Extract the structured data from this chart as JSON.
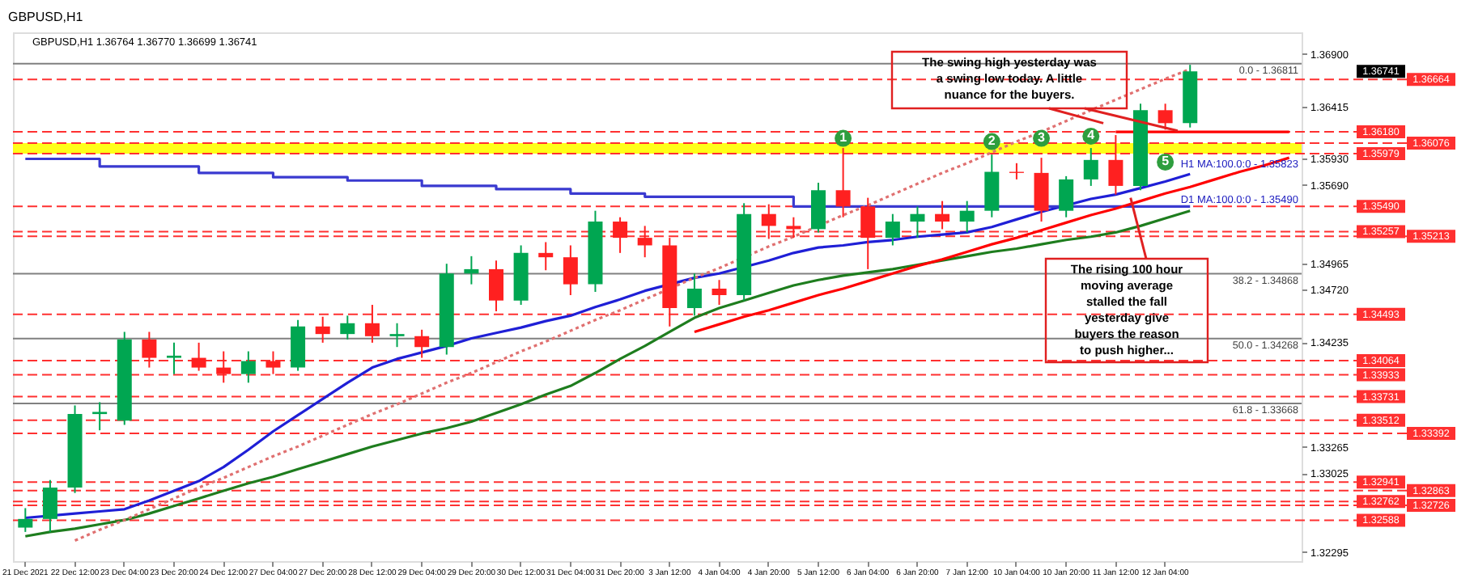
{
  "chart_data": {
    "type": "candlestick",
    "title": "GBPUSD,H1",
    "subtitle": "GBPUSD,H1  1.36764 1.36770 1.36699 1.36741",
    "categories": [
      "21 Dec 2021",
      null,
      "22 Dec 12:00",
      null,
      "23 Dec 04:00",
      null,
      "23 Dec 20:00",
      null,
      "24 Dec 12:00",
      null,
      "27 Dec 04:00",
      null,
      "27 Dec 20:00",
      null,
      "28 Dec 12:00",
      null,
      "29 Dec 04:00",
      null,
      "29 Dec 20:00",
      null,
      "30 Dec 12:00",
      null,
      "31 Dec 04:00",
      null,
      "31 Dec 20:00",
      null,
      "3 Jan 12:00",
      null,
      "4 Jan 04:00",
      null,
      "4 Jan 20:00",
      null,
      "5 Jan 12:00",
      null,
      "6 Jan 04:00",
      null,
      "6 Jan 20:00",
      null,
      "7 Jan 12:00",
      null,
      "10 Jan 04:00",
      null,
      "10 Jan 20:00",
      null,
      "11 Jan 12:00",
      null,
      "12 Jan 04:00",
      null,
      null,
      null,
      null,
      null
    ],
    "ohlc": [
      [
        1.3252,
        1.327,
        1.3248,
        1.326
      ],
      [
        1.326,
        1.3296,
        1.3248,
        1.3289
      ],
      [
        1.3289,
        1.3365,
        1.3284,
        1.3357
      ],
      [
        1.3357,
        1.3368,
        1.3342,
        1.3359
      ],
      [
        1.3351,
        1.3433,
        1.3347,
        1.3426
      ],
      [
        1.3426,
        1.3433,
        1.34,
        1.3409
      ],
      [
        1.3409,
        1.3423,
        1.3394,
        1.3411
      ],
      [
        1.3409,
        1.3423,
        1.3397,
        1.34
      ],
      [
        1.34,
        1.3415,
        1.3386,
        1.3394
      ],
      [
        1.3394,
        1.3415,
        1.3386,
        1.3406
      ],
      [
        1.3406,
        1.3415,
        1.3394,
        1.34
      ],
      [
        1.34,
        1.3444,
        1.3397,
        1.3438
      ],
      [
        1.3438,
        1.3447,
        1.3423,
        1.3431
      ],
      [
        1.3431,
        1.3448,
        1.3426,
        1.3441
      ],
      [
        1.3441,
        1.3458,
        1.3423,
        1.3429
      ],
      [
        1.3429,
        1.3441,
        1.3419,
        1.3431
      ],
      [
        1.3429,
        1.3435,
        1.3409,
        1.3419
      ],
      [
        1.3419,
        1.3496,
        1.3412,
        1.3487
      ],
      [
        1.3487,
        1.3503,
        1.3477,
        1.3491
      ],
      [
        1.3491,
        1.3499,
        1.3452,
        1.3462
      ],
      [
        1.3462,
        1.3513,
        1.3458,
        1.3506
      ],
      [
        1.3506,
        1.3516,
        1.349,
        1.3502
      ],
      [
        1.3502,
        1.3513,
        1.3467,
        1.3477
      ],
      [
        1.3477,
        1.3545,
        1.347,
        1.3535
      ],
      [
        1.3535,
        1.3539,
        1.3506,
        1.352
      ],
      [
        1.352,
        1.3531,
        1.3502,
        1.3513
      ],
      [
        1.3513,
        1.352,
        1.3438,
        1.3455
      ],
      [
        1.3455,
        1.3487,
        1.3448,
        1.3473
      ],
      [
        1.3473,
        1.3481,
        1.3458,
        1.3467
      ],
      [
        1.3467,
        1.3552,
        1.3462,
        1.3542
      ],
      [
        1.3542,
        1.3551,
        1.3519,
        1.3531
      ],
      [
        1.3531,
        1.3539,
        1.352,
        1.3528
      ],
      [
        1.3528,
        1.3571,
        1.3525,
        1.3564
      ],
      [
        1.3564,
        1.3603,
        1.3539,
        1.3549
      ],
      [
        1.3549,
        1.3557,
        1.3491,
        1.352
      ],
      [
        1.352,
        1.3542,
        1.3513,
        1.3535
      ],
      [
        1.3535,
        1.3549,
        1.352,
        1.3542
      ],
      [
        1.3542,
        1.3554,
        1.3528,
        1.3535
      ],
      [
        1.3535,
        1.3554,
        1.3525,
        1.3545
      ],
      [
        1.3545,
        1.3597,
        1.3539,
        1.3581
      ],
      [
        1.3581,
        1.3589,
        1.3574,
        1.358
      ],
      [
        1.358,
        1.3594,
        1.3535,
        1.3545
      ],
      [
        1.3545,
        1.3577,
        1.3539,
        1.3574
      ],
      [
        1.3574,
        1.3603,
        1.3568,
        1.3592
      ],
      [
        1.3592,
        1.3615,
        1.356,
        1.3568
      ],
      [
        1.3568,
        1.3644,
        1.3564,
        1.3638
      ],
      [
        1.3638,
        1.3644,
        1.362,
        1.3626
      ],
      [
        1.3626,
        1.368,
        1.3622,
        1.3674
      ],
      null,
      null,
      null,
      null
    ],
    "series": [
      {
        "type": "line",
        "color": "#1f1fd6",
        "values": [
          1.3261,
          null,
          1.3265,
          1.3267,
          1.3269,
          1.3277,
          1.3286,
          1.3295,
          1.3308,
          1.3324,
          1.3341,
          1.3356,
          1.3371,
          1.3386,
          1.34,
          1.3408,
          1.3414,
          1.342,
          1.3427,
          1.3432,
          1.3437,
          1.3443,
          1.3448,
          1.3456,
          1.3463,
          1.3471,
          null,
          1.3483,
          1.3487,
          null,
          1.3499,
          1.3506,
          1.3511,
          1.3513,
          1.3516,
          1.3518,
          1.3521,
          1.3523,
          1.3525,
          1.353,
          1.3537,
          1.3544,
          null,
          1.3556,
          1.356,
          1.3566,
          1.3572,
          1.3579,
          null,
          null,
          null,
          null
        ]
      },
      {
        "type": "line",
        "color": "#1e7d1e",
        "values": [
          1.3244,
          1.3248,
          1.3251,
          1.3255,
          1.3259,
          1.3265,
          1.3272,
          1.3279,
          1.3286,
          1.3293,
          1.3299,
          1.3306,
          1.3313,
          1.332,
          1.3327,
          1.3333,
          1.3339,
          1.3344,
          1.335,
          1.3358,
          1.3366,
          1.3375,
          1.3383,
          1.3395,
          1.3408,
          1.342,
          1.3433,
          1.3446,
          1.3455,
          1.3462,
          1.3469,
          1.3476,
          1.3481,
          1.3485,
          1.3488,
          1.3491,
          1.3495,
          1.3499,
          1.3503,
          1.3507,
          1.351,
          1.3514,
          1.3518,
          1.3521,
          1.3525,
          1.3531,
          1.3538,
          1.3545,
          null,
          null,
          null,
          null
        ]
      },
      {
        "type": "step",
        "color": "#3a3ad0",
        "values": [
          1.3593,
          1.3593,
          1.3593,
          1.3586,
          1.3586,
          1.3586,
          1.3586,
          1.358,
          1.358,
          1.358,
          1.3576,
          1.3576,
          1.3576,
          1.3573,
          1.3573,
          1.3573,
          1.3568,
          1.3568,
          1.3568,
          1.3565,
          1.3565,
          1.3565,
          1.3561,
          1.3561,
          1.3561,
          1.3558,
          1.3558,
          1.3558,
          1.3558,
          1.3558,
          1.3558,
          1.3549,
          1.3549,
          1.3549,
          1.3549,
          1.3549,
          1.3549,
          1.3549,
          1.3549,
          null,
          1.3549,
          1.3549,
          null,
          1.3549,
          1.3549,
          1.3549,
          1.3549,
          1.3549,
          null,
          null,
          null,
          null
        ]
      },
      {
        "type": "line",
        "color": "#ff0000",
        "values": [
          null,
          null,
          null,
          null,
          null,
          null,
          null,
          null,
          null,
          null,
          null,
          null,
          null,
          null,
          null,
          null,
          null,
          null,
          null,
          null,
          null,
          null,
          null,
          null,
          null,
          null,
          null,
          1.3433,
          1.344,
          1.3447,
          1.3453,
          1.346,
          1.3467,
          1.3473,
          1.348,
          1.3487,
          1.3494,
          1.35,
          1.3507,
          1.3514,
          1.352,
          1.3527,
          1.3534,
          1.3541,
          1.3547,
          1.3554,
          1.3561,
          1.3567,
          1.3574,
          1.3581,
          1.3587,
          1.3594
        ]
      },
      {
        "type": "line",
        "color": "#ff0000",
        "values": [
          null,
          null,
          null,
          null,
          null,
          null,
          null,
          null,
          null,
          null,
          null,
          null,
          null,
          null,
          null,
          null,
          null,
          null,
          null,
          null,
          null,
          null,
          null,
          null,
          null,
          null,
          null,
          null,
          null,
          null,
          null,
          null,
          null,
          null,
          null,
          null,
          null,
          null,
          null,
          null,
          null,
          null,
          null,
          null,
          1.3618,
          null,
          1.3618,
          1.3618,
          1.3618,
          1.3618,
          1.3618,
          1.3618
        ]
      },
      {
        "type": "line",
        "color": "#e07070",
        "line_style": "dotted",
        "values": [
          null,
          null,
          1.324,
          1.325,
          1.3259,
          1.3269,
          1.3279,
          1.3289,
          1.3298,
          1.3308,
          1.3318,
          1.3327,
          1.3337,
          1.3347,
          1.3357,
          1.3366,
          1.3376,
          1.3386,
          1.3395,
          1.3405,
          1.3415,
          1.3424,
          1.3434,
          1.3444,
          1.3453,
          1.3463,
          null,
          1.3483,
          1.3492,
          null,
          1.3512,
          1.3521,
          1.3531,
          1.3541,
          1.355,
          1.356,
          1.357,
          1.358,
          1.3589,
          1.3599,
          1.3609,
          1.3618,
          1.3628,
          1.3638,
          null,
          null,
          1.3667,
          1.3676,
          null,
          null,
          null,
          null
        ]
      }
    ],
    "ylim": [
      1.3221,
      1.371
    ],
    "yticks": [
      {
        "value": 1.32295,
        "label": "1.32295"
      },
      {
        "value": 1.33025,
        "label": "1.33025"
      },
      {
        "value": 1.33265,
        "label": "1.33265"
      },
      {
        "value": 1.34235,
        "label": "1.34235"
      },
      {
        "value": 1.3472,
        "label": "1.34720"
      },
      {
        "value": 1.34965,
        "label": "1.34965"
      },
      {
        "value": 1.3569,
        "label": "1.35690"
      },
      {
        "value": 1.3593,
        "label": "1.35930"
      },
      {
        "value": 1.36415,
        "label": "1.36415"
      },
      {
        "value": 1.369,
        "label": "1.36900"
      }
    ],
    "ref_lines": [
      {
        "axis": "y",
        "value": 1.36811,
        "color": "#808080",
        "line_style": "solid"
      },
      {
        "axis": "y",
        "value": 1.34868,
        "color": "#808080",
        "line_style": "solid"
      },
      {
        "axis": "y",
        "value": 1.34268,
        "color": "#808080",
        "line_style": "solid"
      },
      {
        "axis": "y",
        "value": 1.33668,
        "color": "#808080",
        "line_style": "solid"
      },
      {
        "axis": "y",
        "value": 1.36664,
        "label": "1.36664",
        "color": "#ff3030",
        "line_style": "dashed"
      },
      {
        "axis": "y",
        "value": 1.3618,
        "label": "1.36180",
        "color": "#ff3030",
        "line_style": "dashed"
      },
      {
        "axis": "y",
        "value": 1.36076,
        "label": "1.36076",
        "color": "#ff3030",
        "line_style": "dashed"
      },
      {
        "axis": "y",
        "value": 1.35979,
        "label": "1.35979",
        "color": "#ff3030",
        "line_style": "dashed"
      },
      {
        "axis": "y",
        "value": 1.3549,
        "label": "1.35490",
        "color": "#ff3030",
        "line_style": "dashed"
      },
      {
        "axis": "y",
        "value": 1.35257,
        "label": "1.35257",
        "color": "#ff3030",
        "line_style": "dashed"
      },
      {
        "axis": "y",
        "value": 1.35213,
        "label": "1.35213",
        "color": "#ff3030",
        "line_style": "dashed"
      },
      {
        "axis": "y",
        "value": 1.34493,
        "label": "1.34493",
        "color": "#ff3030",
        "line_style": "dashed"
      },
      {
        "axis": "y",
        "value": 1.34064,
        "label": "1.34064",
        "color": "#ff3030",
        "line_style": "dashed"
      },
      {
        "axis": "y",
        "value": 1.33933,
        "label": "1.33933",
        "color": "#ff3030",
        "line_style": "dashed"
      },
      {
        "axis": "y",
        "value": 1.33731,
        "label": "1.33731",
        "color": "#ff3030",
        "line_style": "dashed"
      },
      {
        "axis": "y",
        "value": 1.33512,
        "label": "1.33512",
        "color": "#ff3030",
        "line_style": "dashed"
      },
      {
        "axis": "y",
        "value": 1.33392,
        "label": "1.33392",
        "color": "#ff3030",
        "line_style": "dashed"
      },
      {
        "axis": "y",
        "value": 1.32941,
        "label": "1.32941",
        "color": "#ff3030",
        "line_style": "dashed"
      },
      {
        "axis": "y",
        "value": 1.32863,
        "label": "1.32863",
        "color": "#ff3030",
        "line_style": "dashed"
      },
      {
        "axis": "y",
        "value": 1.32762,
        "label": "1.32762",
        "color": "#ff3030",
        "line_style": "dashed"
      },
      {
        "axis": "y",
        "value": 1.32726,
        "label": "1.32726",
        "color": "#ff3030",
        "line_style": "dashed"
      },
      {
        "axis": "y",
        "value": 1.32588,
        "label": "1.32588",
        "color": "#ff3030",
        "line_style": "dashed"
      }
    ],
    "bands": [
      {
        "axis": "y",
        "from": 1.35979,
        "to": 1.36076,
        "color": "#ffff00"
      }
    ],
    "annotations": [
      {
        "text": "The swing high yesterday was\na swing low today.  A little\nnuance for the buyers.",
        "y": 1.3619
      },
      {
        "text": "The  rising 100 hour\nmoving average\nstalled the fall\nyesterday give\nbuyers the reason\nto push higher...",
        "y": 1.3557
      },
      {
        "text": "1",
        "y": 1.3612
      },
      {
        "text": "2",
        "y": 1.3609
      },
      {
        "text": "3",
        "y": 1.3612
      },
      {
        "text": "4",
        "y": 1.3614
      },
      {
        "text": "5",
        "y": 1.359
      },
      {
        "text": "H1 MA:100.0:0 - 1.35823",
        "y": 1.35823
      },
      {
        "text": "D1 MA:100.0:0 - 1.35490",
        "y": 1.3549
      },
      "1.36741",
      {
        "text": "0.0 - 1.36811",
        "y": 1.36811
      },
      {
        "text": "38.2 - 1.34868",
        "y": 1.34868
      },
      {
        "text": "50.0 - 1.34268",
        "y": 1.34268
      },
      {
        "text": "61.8 - 1.33668",
        "y": 1.33668
      }
    ]
  }
}
